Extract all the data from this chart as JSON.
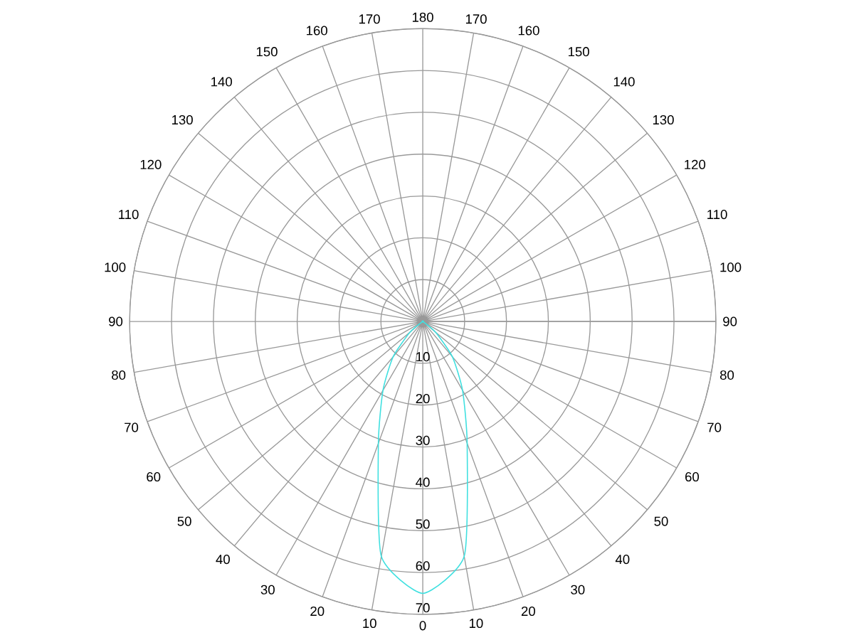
{
  "chart_data": {
    "type": "radar",
    "categories": [
      "180",
      "170",
      "160",
      "150",
      "140",
      "130",
      "120",
      "110",
      "100",
      "90",
      "80",
      "70",
      "60",
      "50",
      "40",
      "30",
      "20",
      "10",
      "0",
      "10",
      "20",
      "30",
      "40",
      "50",
      "60",
      "70",
      "80",
      "90",
      "100",
      "110",
      "120",
      "130",
      "140",
      "150",
      "160",
      "170"
    ],
    "series": [
      {
        "color": "#40e0e0",
        "values": [
          0,
          0,
          0,
          0,
          0,
          0,
          0,
          0,
          0,
          0,
          0,
          0,
          0,
          4,
          11,
          19,
          31,
          57,
          65,
          57,
          31,
          19,
          11,
          4,
          0,
          0,
          0,
          0,
          0,
          0,
          0,
          0,
          0,
          0,
          0,
          0
        ]
      }
    ],
    "ylim": [
      0,
      70
    ],
    "yticks": [
      10,
      20,
      30,
      40,
      50,
      60,
      70
    ],
    "grid": true
  }
}
